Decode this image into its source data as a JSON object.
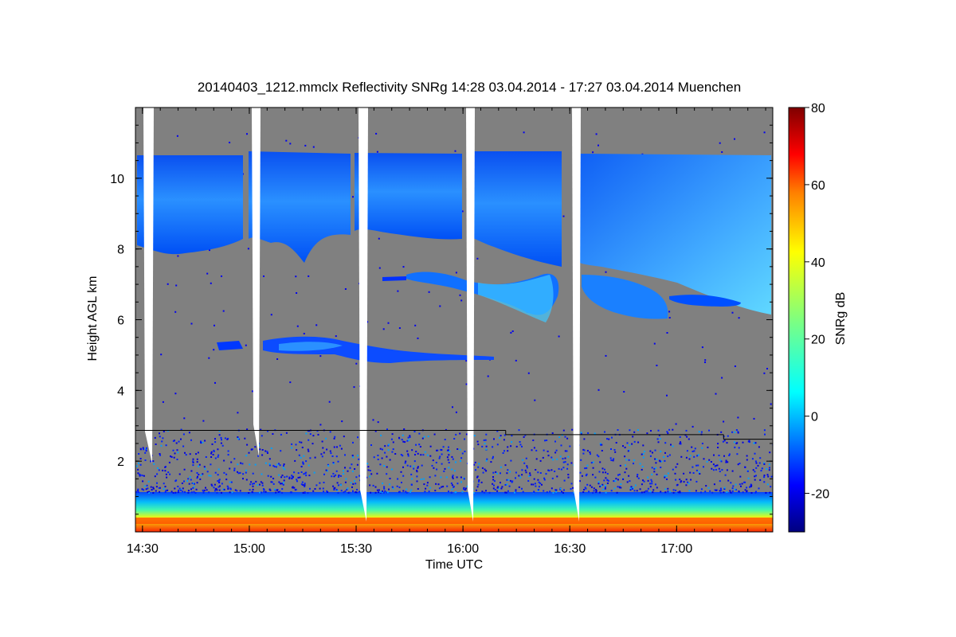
{
  "chart_data": {
    "type": "heatmap",
    "title": "20140403_1212.mmclx Reflectivity SNRg   14:28 03.04.2014 - 17:27 03.04.2014 Muenchen",
    "xlabel": "Time UTC",
    "ylabel": "Height AGL km",
    "colorbar_label": "SNRg dB",
    "x_range_hours": [
      14.467,
      17.45
    ],
    "y_range_km": [
      0,
      12
    ],
    "x_ticks": [
      {
        "value": 14.5,
        "label": "14:30"
      },
      {
        "value": 15.0,
        "label": "15:00"
      },
      {
        "value": 15.5,
        "label": "15:30"
      },
      {
        "value": 16.0,
        "label": "16:00"
      },
      {
        "value": 16.5,
        "label": "16:30"
      },
      {
        "value": 17.0,
        "label": "17:00"
      }
    ],
    "y_ticks": [
      {
        "value": 2,
        "label": "2"
      },
      {
        "value": 4,
        "label": "4"
      },
      {
        "value": 6,
        "label": "6"
      },
      {
        "value": 8,
        "label": "8"
      },
      {
        "value": 10,
        "label": "10"
      }
    ],
    "colorbar_range_db": [
      -30,
      80
    ],
    "colorbar_ticks": [
      {
        "value": -20,
        "label": "-20"
      },
      {
        "value": 0,
        "label": "0"
      },
      {
        "value": 20,
        "label": "20"
      },
      {
        "value": 40,
        "label": "40"
      },
      {
        "value": 60,
        "label": "60"
      },
      {
        "value": 80,
        "label": "80"
      }
    ],
    "colormap": [
      "#00007f",
      "#0000ff",
      "#007fff",
      "#00ffff",
      "#7fff7f",
      "#ffff00",
      "#ff7f00",
      "#ff0000",
      "#7f0000"
    ],
    "background_color": "#808080",
    "reference_line_km": [
      {
        "start_hours": 14.467,
        "end_hours": 16.2,
        "height_km": 2.87
      },
      {
        "start_hours": 16.2,
        "end_hours": 17.22,
        "height_km": 2.75
      },
      {
        "start_hours": 17.22,
        "end_hours": 17.45,
        "height_km": 2.62
      }
    ]
  }
}
